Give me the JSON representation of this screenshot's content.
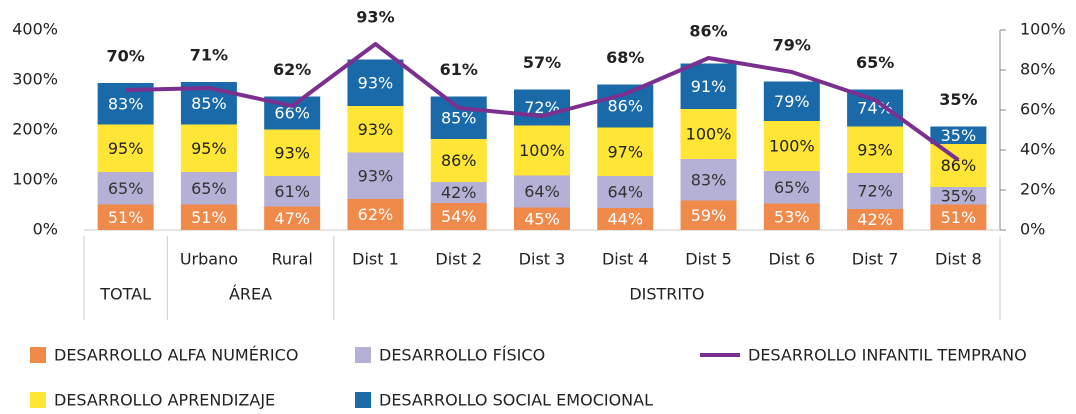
{
  "chart_data": {
    "type": "stacked_bar_line",
    "categories": [
      null,
      "Urbano",
      "Rural",
      "Dist 1",
      "Dist 2",
      "Dist 3",
      "Dist 4",
      "Dist 5",
      "Dist 6",
      "Dist 7",
      "Dist 8"
    ],
    "groups": [
      {
        "name": "TOTAL",
        "size": 1
      },
      {
        "name": "ÁREA",
        "size": 2
      },
      {
        "name": "DISTRITO",
        "size": 8
      }
    ],
    "series": [
      {
        "name": "DESARROLLO ALFA NUMÉRICO",
        "color": "#f08a4b",
        "label_color": "#ffffff",
        "values": [
          51,
          51,
          47,
          62,
          54,
          45,
          44,
          59,
          53,
          42,
          51
        ],
        "value_labels": [
          "51%",
          "51%",
          "47%",
          "62%",
          "54%",
          "45%",
          "44%",
          "59%",
          "53%",
          "42%",
          "51%"
        ]
      },
      {
        "name": "DESARROLLO FÍSICO",
        "color": "#b4b0d6",
        "label_color": "#333333",
        "values": [
          65,
          65,
          61,
          93,
          42,
          64,
          64,
          83,
          65,
          72,
          35
        ],
        "value_labels": [
          "65%",
          "65%",
          "61%",
          "93%",
          "42%",
          "64%",
          "64%",
          "83%",
          "65%",
          "72%",
          "35%"
        ]
      },
      {
        "name": "DESARROLLO APRENDIZAJE",
        "color": "#ffe535",
        "label_color": "#222222",
        "values": [
          95,
          95,
          93,
          93,
          86,
          100,
          97,
          100,
          100,
          93,
          86
        ],
        "value_labels": [
          "95%",
          "95%",
          "93%",
          "93%",
          "86%",
          "100%",
          "97%",
          "100%",
          "100%",
          "93%",
          "86%"
        ]
      },
      {
        "name": "DESARROLLO SOCIAL EMOCIONAL",
        "color": "#1a6aaa",
        "label_color": "#ffffff",
        "values": [
          83,
          85,
          66,
          93,
          85,
          72,
          86,
          91,
          79,
          74,
          35
        ],
        "value_labels": [
          "83%",
          "85%",
          "66%",
          "93%",
          "85%",
          "72%",
          "86%",
          "91%",
          "79%",
          "74%",
          "35%"
        ]
      },
      {
        "name": "DESARROLLO INFANTIL TEMPRANO",
        "color": "#7b2f8e",
        "type": "line",
        "axis": "y2",
        "values": [
          70,
          71,
          62,
          93,
          61,
          57,
          68,
          86,
          79,
          65,
          35
        ],
        "value_labels": [
          "70%",
          "71%",
          "62%",
          "93%",
          "61%",
          "57%",
          "68%",
          "86%",
          "79%",
          "65%",
          "35%"
        ]
      }
    ],
    "ylim": [
      0,
      400
    ],
    "yticks": [
      {
        "value": 0,
        "label": "0%"
      },
      {
        "value": 100,
        "label": "100%"
      },
      {
        "value": 200,
        "label": "200%"
      },
      {
        "value": 300,
        "label": "300%"
      },
      {
        "value": 400,
        "label": "400%"
      }
    ],
    "y2lim": [
      0,
      100
    ],
    "y2ticks": [
      {
        "value": 0,
        "label": "0%"
      },
      {
        "value": 20,
        "label": "20%"
      },
      {
        "value": 40,
        "label": "40%"
      },
      {
        "value": 60,
        "label": "60%"
      },
      {
        "value": 80,
        "label": "80%"
      },
      {
        "value": 100,
        "label": "100%"
      }
    ]
  }
}
